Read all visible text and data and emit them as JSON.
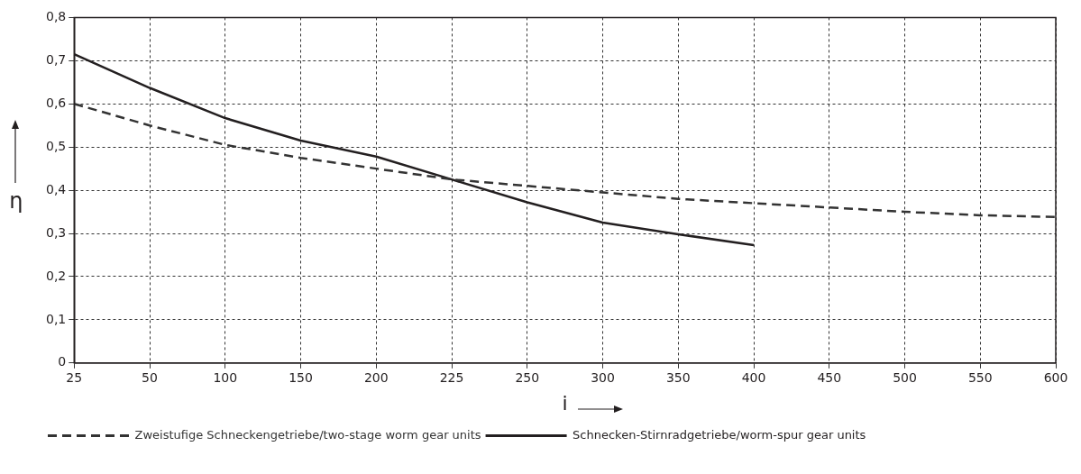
{
  "chart_data": {
    "type": "line",
    "xlabel": "i",
    "ylabel": "η",
    "categories": [
      "25",
      "50",
      "100",
      "150",
      "200",
      "225",
      "250",
      "300",
      "350",
      "400",
      "450",
      "500",
      "550",
      "600"
    ],
    "series": [
      {
        "name": "Zweistufige Schneckengetriebe/two-stage worm gear units",
        "color": "#333333",
        "line_style": "dashed",
        "values": [
          0.6,
          0.55,
          0.505,
          0.475,
          0.45,
          0.425,
          0.41,
          0.395,
          0.38,
          0.37,
          0.36,
          0.35,
          0.342,
          0.338
        ]
      },
      {
        "name": "Schnecken-Stirnradgetriebe/worm-spur gear units",
        "color": "#231f20",
        "line_style": "solid",
        "values": [
          0.715,
          0.637,
          0.567,
          0.515,
          0.478,
          0.425,
          0.372,
          0.325,
          0.298,
          0.273,
          null,
          null,
          null,
          null
        ]
      }
    ],
    "ylim": [
      0,
      0.8
    ],
    "yticks": [
      0,
      {
        "value": 0.1,
        "label": "0,1"
      },
      {
        "value": 0.2,
        "label": "0,2"
      },
      {
        "value": 0.3,
        "label": "0,3"
      },
      {
        "value": 0.4,
        "label": "0,4"
      },
      {
        "value": 0.5,
        "label": "0,5"
      },
      {
        "value": 0.6,
        "label": "0,6"
      },
      {
        "value": 0.7,
        "label": "0,7"
      },
      {
        "value": 0.8,
        "label": "0,8"
      }
    ],
    "grid": true,
    "legend": "bottom left",
    "marker": "none"
  }
}
